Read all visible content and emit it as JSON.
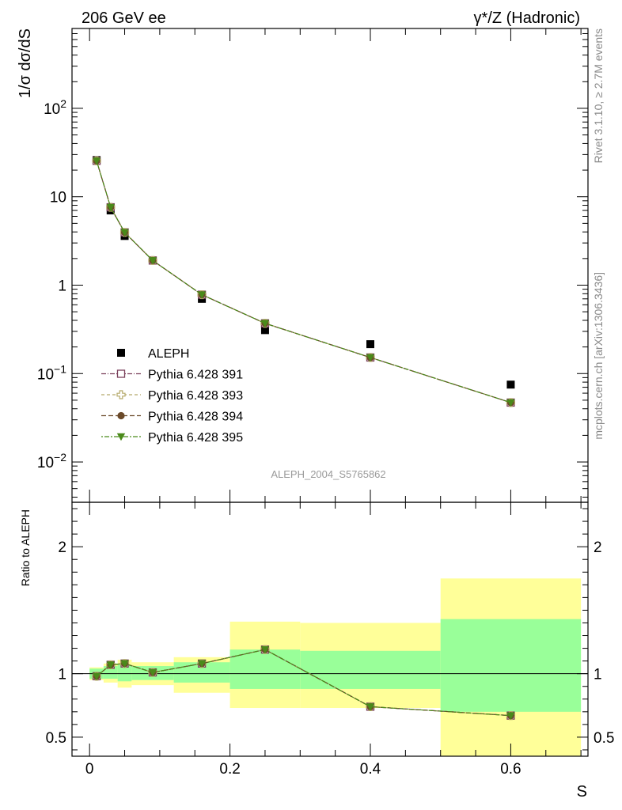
{
  "header": {
    "left": "206 GeV ee",
    "right": "γ*/Z (Hadronic)"
  },
  "side_text": {
    "rivet": "Rivet 3.1.10, ≥ 2.7M events",
    "mcplots": "mcplots.cern.ch [arXiv:1306.3436]"
  },
  "analysis_id": "ALEPH_2004_S5765862",
  "colors": {
    "data": "#000000",
    "p391": "#7a3f5a",
    "p393": "#b5a96a",
    "p394": "#6b4a2a",
    "p395": "#4a8a1a",
    "band_inner": "#99ff99",
    "band_outer": "#ffff99"
  },
  "chart_data": [
    {
      "type": "scatter",
      "panel": "main",
      "ylabel": "1/σ dσ/dS",
      "yscale": "log",
      "ylim": [
        0.0035,
        800
      ],
      "xlim": [
        -0.025,
        0.71
      ],
      "y_ticks": [
        {
          "value": 0.01,
          "base": "10",
          "exp": "−2"
        },
        {
          "value": 0.1,
          "base": "10",
          "exp": "−1"
        },
        {
          "value": 1,
          "base": "1",
          "exp": ""
        },
        {
          "value": 10,
          "base": "10",
          "exp": ""
        },
        {
          "value": 100,
          "base": "10",
          "exp": "2"
        }
      ],
      "x_bins": [
        [
          0.0,
          0.02
        ],
        [
          0.02,
          0.04
        ],
        [
          0.04,
          0.06
        ],
        [
          0.06,
          0.12
        ],
        [
          0.12,
          0.2
        ],
        [
          0.2,
          0.3
        ],
        [
          0.3,
          0.5
        ],
        [
          0.5,
          0.7
        ]
      ],
      "x": [
        0.01,
        0.03,
        0.05,
        0.09,
        0.16,
        0.25,
        0.4,
        0.6
      ],
      "legend": {
        "position": "bottom-left"
      },
      "series": [
        {
          "name": "ALEPH",
          "marker": "square",
          "values": [
            26,
            7.0,
            3.6,
            1.9,
            0.7,
            0.31,
            0.215,
            0.075
          ]
        },
        {
          "name": "Pythia 6.428 391",
          "marker": "open-square",
          "values": [
            25.5,
            7.6,
            3.95,
            1.9,
            0.78,
            0.37,
            0.152,
            0.047
          ]
        },
        {
          "name": "Pythia 6.428 393",
          "marker": "open-cross",
          "values": [
            25.5,
            7.6,
            3.95,
            1.9,
            0.78,
            0.37,
            0.152,
            0.047
          ]
        },
        {
          "name": "Pythia 6.428 394",
          "marker": "circle",
          "values": [
            25.5,
            7.6,
            3.95,
            1.9,
            0.78,
            0.37,
            0.152,
            0.047
          ]
        },
        {
          "name": "Pythia 6.428 395",
          "marker": "triangle-down",
          "values": [
            25.5,
            7.6,
            3.95,
            1.9,
            0.78,
            0.37,
            0.152,
            0.047
          ]
        }
      ]
    },
    {
      "type": "scatter",
      "panel": "ratio",
      "ylabel": "Ratio to ALEPH",
      "xlabel": "S",
      "ylim": [
        0.35,
        2.35
      ],
      "xlim": [
        -0.025,
        0.71
      ],
      "y_ticks": [
        {
          "value": 0.5,
          "label": "0.5"
        },
        {
          "value": 1,
          "label": "1"
        },
        {
          "value": 2,
          "label": "2"
        }
      ],
      "x_ticks": [
        {
          "value": 0,
          "label": "0"
        },
        {
          "value": 0.2,
          "label": "0.2"
        },
        {
          "value": 0.4,
          "label": "0.4"
        },
        {
          "value": 0.6,
          "label": "0.6"
        }
      ],
      "uncertainty_bands": {
        "x_bins": [
          [
            0.0,
            0.02
          ],
          [
            0.02,
            0.04
          ],
          [
            0.04,
            0.06
          ],
          [
            0.06,
            0.12
          ],
          [
            0.12,
            0.2
          ],
          [
            0.2,
            0.3
          ],
          [
            0.3,
            0.5
          ],
          [
            0.5,
            0.7
          ]
        ],
        "inner": [
          [
            0.96,
            1.04
          ],
          [
            0.96,
            1.06
          ],
          [
            0.94,
            1.07
          ],
          [
            0.95,
            1.06
          ],
          [
            0.93,
            1.09
          ],
          [
            0.88,
            1.19
          ],
          [
            0.88,
            1.18
          ],
          [
            0.7,
            1.43
          ]
        ],
        "outer": [
          [
            0.95,
            1.05
          ],
          [
            0.93,
            1.08
          ],
          [
            0.89,
            1.11
          ],
          [
            0.91,
            1.09
          ],
          [
            0.85,
            1.13
          ],
          [
            0.73,
            1.41
          ],
          [
            0.73,
            1.4
          ],
          [
            0.33,
            1.75
          ]
        ]
      },
      "x": [
        0.01,
        0.03,
        0.05,
        0.09,
        0.16,
        0.25,
        0.4,
        0.6
      ],
      "series": [
        {
          "name": "Pythia 6.428 391",
          "marker": "open-square",
          "values": [
            0.98,
            1.07,
            1.08,
            1.01,
            1.08,
            1.19,
            0.74,
            0.67
          ]
        },
        {
          "name": "Pythia 6.428 393",
          "marker": "open-cross",
          "values": [
            0.98,
            1.07,
            1.08,
            1.01,
            1.08,
            1.19,
            0.74,
            0.67
          ]
        },
        {
          "name": "Pythia 6.428 394",
          "marker": "circle",
          "values": [
            0.98,
            1.07,
            1.08,
            1.01,
            1.08,
            1.19,
            0.74,
            0.67
          ]
        },
        {
          "name": "Pythia 6.428 395",
          "marker": "triangle-down",
          "values": [
            0.98,
            1.07,
            1.08,
            1.01,
            1.08,
            1.19,
            0.74,
            0.67
          ]
        }
      ]
    }
  ]
}
